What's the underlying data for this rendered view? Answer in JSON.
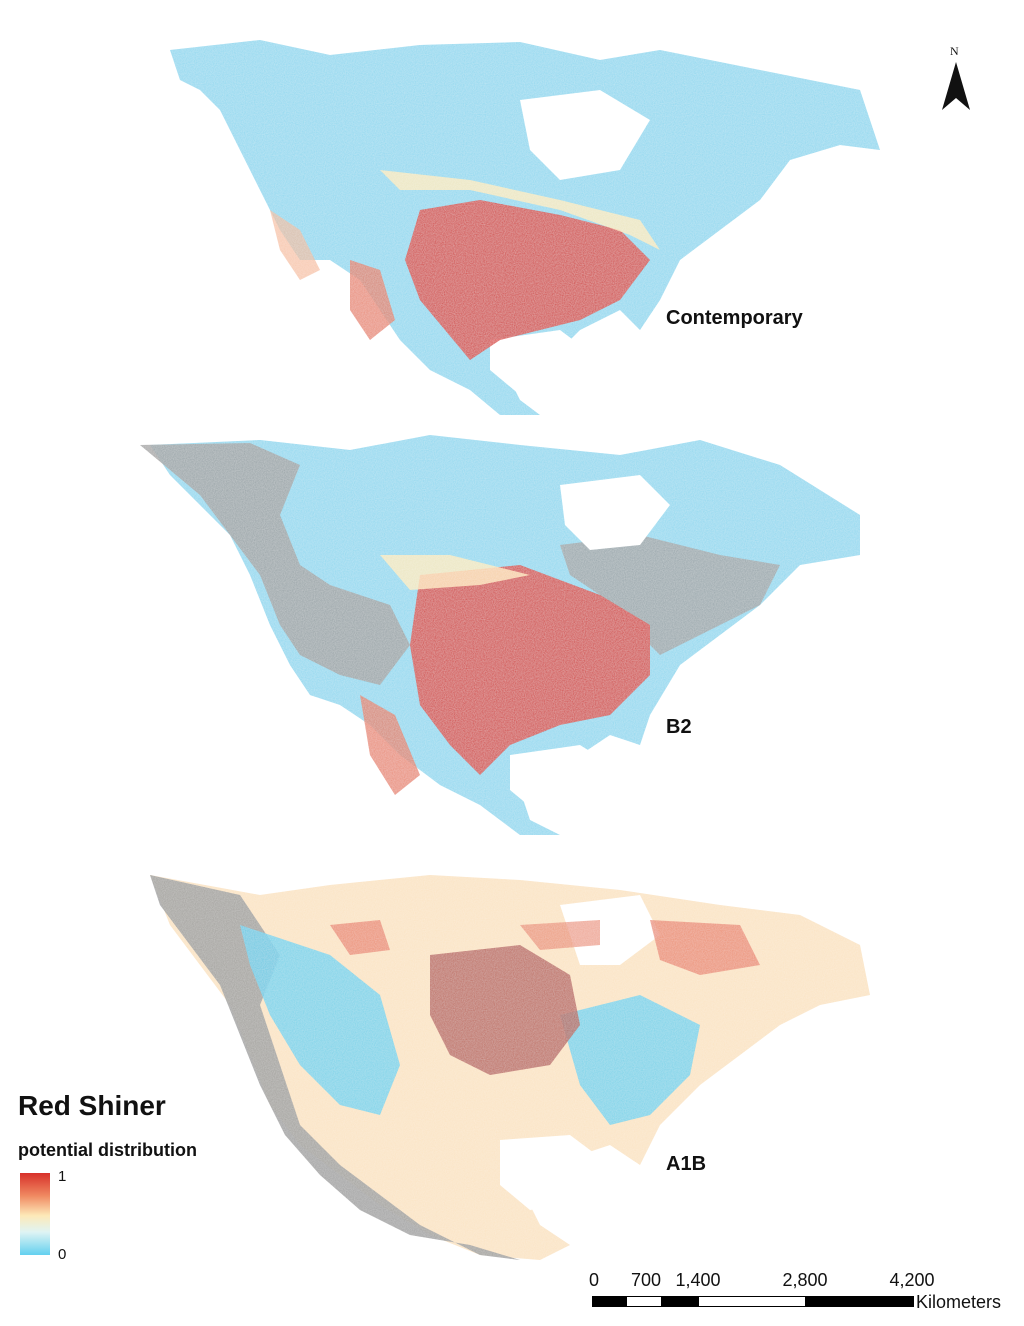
{
  "panels": [
    {
      "label": "Contemporary"
    },
    {
      "label": "B2"
    },
    {
      "label": "A1B"
    }
  ],
  "north_arrow": {
    "label": "N"
  },
  "legend": {
    "title": "Red Shiner",
    "subtitle": "potential distribution",
    "max_label": "1",
    "min_label": "0",
    "colors": {
      "high": "#d7302a",
      "mid": "#fde9b8",
      "low": "#63d0ef",
      "masked": "#999999"
    }
  },
  "scale_bar": {
    "ticks": [
      "0",
      "700",
      "1,400",
      "2,800",
      "4,200"
    ],
    "unit": "Kilometers"
  }
}
